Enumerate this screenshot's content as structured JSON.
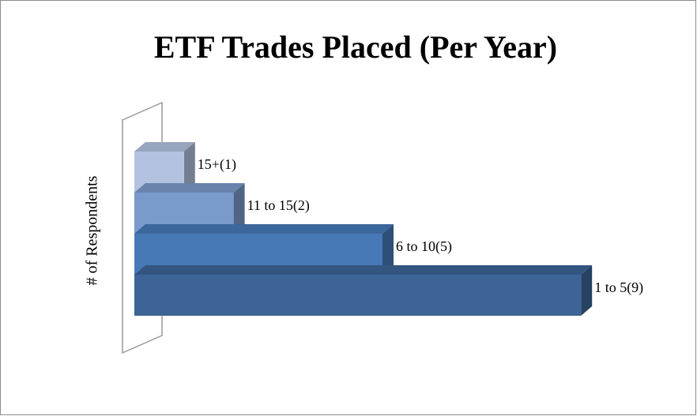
{
  "chart_data": {
    "type": "bar3d",
    "title": "ETF Trades Placed (Per Year)",
    "y_label": "# of Respondents",
    "categories": [
      "1 to 5",
      "6 to 10",
      "11 to 15",
      "15+"
    ],
    "values": [
      9,
      5,
      2,
      1
    ],
    "value_labels": [
      "1 to 5(9)",
      "6 to 10(5)",
      "11 to 15(2)",
      "15+(1)"
    ],
    "colors": [
      "#3c6496",
      "#4779b7",
      "#7b9acc",
      "#b3c2e0"
    ]
  }
}
